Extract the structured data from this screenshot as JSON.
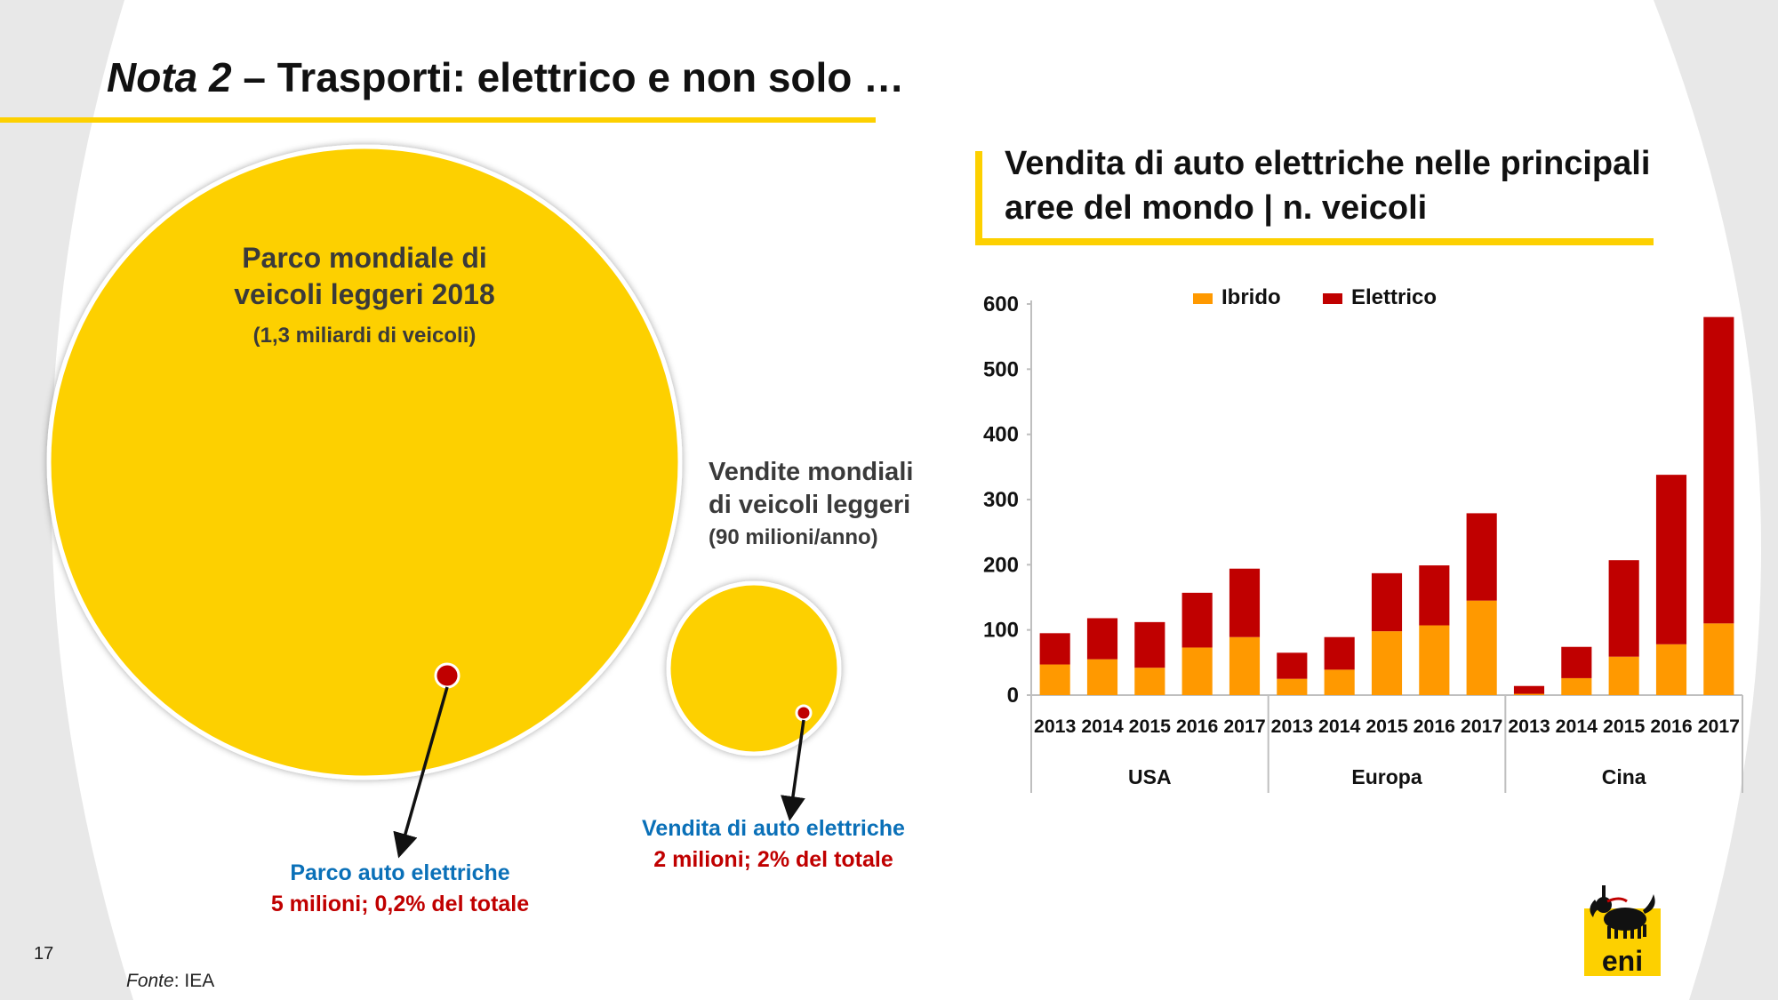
{
  "title": {
    "italic_part": "Nota 2",
    "rest": " – Trasporti: elettrico e non solo …"
  },
  "bubbles": {
    "big": {
      "line1": "Parco mondiale di",
      "line2": "veicoli leggeri 2018",
      "sub": "(1,3 miliardi di veicoli)",
      "callout_blue": "Parco auto elettriche",
      "callout_red": "5 milioni; 0,2% del totale"
    },
    "small": {
      "line1": "Vendite mondiali",
      "line2": "di veicoli leggeri",
      "sub": "(90 milioni/anno)",
      "callout_blue": "Vendita di auto elettriche",
      "callout_red": "2 milioni; 2% del totale"
    }
  },
  "chart_title": {
    "line1": "Vendita di auto elettriche nelle principali",
    "line2": "aree del mondo | n. veicoli"
  },
  "chart_data": {
    "type": "bar",
    "stacked": true,
    "title": "Vendita di auto elettriche nelle principali aree del mondo | n. veicoli",
    "categories": [
      "2013",
      "2014",
      "2015",
      "2016",
      "2017",
      "2013",
      "2014",
      "2015",
      "2016",
      "2017",
      "2013",
      "2014",
      "2015",
      "2016",
      "2017"
    ],
    "groups": [
      {
        "label": "USA",
        "start": 0,
        "count": 5
      },
      {
        "label": "Europa",
        "start": 5,
        "count": 5
      },
      {
        "label": "Cina",
        "start": 10,
        "count": 5
      }
    ],
    "series": [
      {
        "name": "Ibrido",
        "color": "#ff9900",
        "values": [
          47,
          55,
          42,
          73,
          89,
          25,
          39,
          98,
          107,
          145,
          2,
          26,
          59,
          78,
          110
        ]
      },
      {
        "name": "Elettrico",
        "color": "#c00000",
        "values": [
          48,
          63,
          70,
          84,
          105,
          40,
          50,
          89,
          92,
          134,
          12,
          48,
          148,
          260,
          470
        ]
      }
    ],
    "yticks": [
      0,
      100,
      200,
      300,
      400,
      500,
      600
    ],
    "ylim": [
      0,
      600
    ],
    "legend_position": "top"
  },
  "footer": {
    "page_number": "17",
    "source_label": "Fonte",
    "source_value": ": IEA"
  },
  "logo": {
    "text": "eni"
  },
  "colors": {
    "accent_yellow": "#fdd000",
    "bar_orange": "#ff9900",
    "bar_red": "#c00000",
    "callout_blue": "#0a70b8",
    "callout_red": "#c00000"
  }
}
